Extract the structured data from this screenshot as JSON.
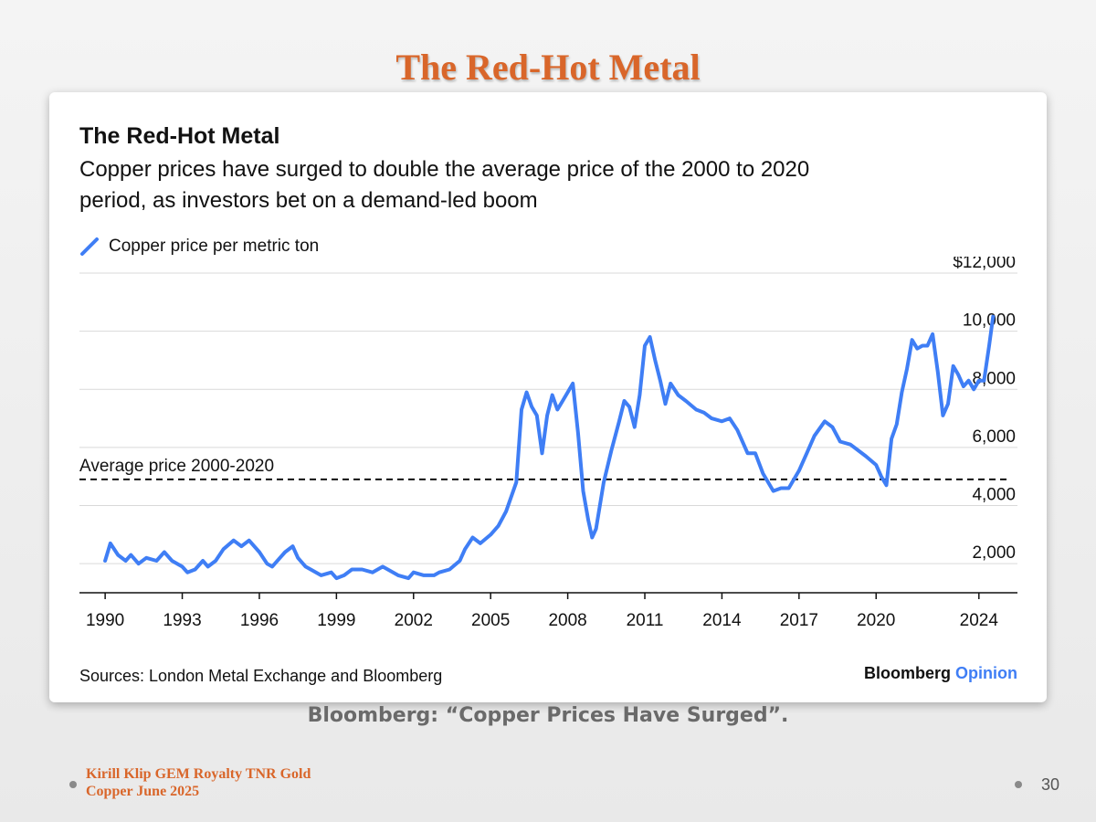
{
  "slide": {
    "title": "The Red-Hot Metal",
    "caption": "Bloomberg: “Copper Prices Have Surged”.",
    "footer_line1": "Kirill Klip GEM Royalty TNR Gold",
    "footer_line2": "Copper June 2025",
    "page_number": "30",
    "accent_color": "#d9662a"
  },
  "chart": {
    "brand_name": "Bloomberg",
    "brand_accent": "Opinion"
  },
  "chart_data": {
    "type": "line",
    "title": "The Red-Hot Metal",
    "subtitle_line1": "Copper prices have surged to double the average price of the 2000 to 2020",
    "subtitle_line2": "period, as investors bet on a demand-led boom",
    "source": "Sources: London Metal Exchange and Bloomberg",
    "xlabel": "",
    "ylabel": "",
    "xlim": [
      1989,
      2025.5
    ],
    "ylim": [
      1000,
      12000
    ],
    "x_ticks": [
      1990,
      1993,
      1996,
      1999,
      2002,
      2005,
      2008,
      2011,
      2014,
      2017,
      2020,
      2024
    ],
    "x_tick_labels": [
      "1990",
      "1993",
      "1996",
      "1999",
      "2002",
      "2005",
      "2008",
      "2011",
      "2014",
      "2017",
      "2020",
      "2024"
    ],
    "y_ticks": [
      2000,
      4000,
      6000,
      8000,
      10000,
      12000
    ],
    "y_tick_labels": [
      "2,000",
      "4,000",
      "6,000",
      "8,000",
      "10,000",
      "$12,000"
    ],
    "grid": true,
    "legend_position": "top-left",
    "reference_line": {
      "value": 4900,
      "label": "Average price 2000-2020"
    },
    "series": [
      {
        "name": "Copper price per metric ton",
        "color": "#3f7ef5",
        "x": [
          1990.0,
          1990.2,
          1990.5,
          1990.8,
          1991.0,
          1991.3,
          1991.6,
          1992.0,
          1992.3,
          1992.6,
          1993.0,
          1993.2,
          1993.5,
          1993.8,
          1994.0,
          1994.3,
          1994.6,
          1995.0,
          1995.3,
          1995.6,
          1996.0,
          1996.3,
          1996.5,
          1996.8,
          1997.0,
          1997.3,
          1997.5,
          1997.8,
          1998.0,
          1998.4,
          1998.8,
          1999.0,
          1999.3,
          1999.6,
          2000.0,
          2000.4,
          2000.8,
          2001.0,
          2001.4,
          2001.8,
          2002.0,
          2002.4,
          2002.8,
          2003.0,
          2003.4,
          2003.8,
          2004.0,
          2004.3,
          2004.6,
          2005.0,
          2005.3,
          2005.6,
          2006.0,
          2006.2,
          2006.4,
          2006.6,
          2006.8,
          2007.0,
          2007.2,
          2007.4,
          2007.6,
          2007.8,
          2008.0,
          2008.2,
          2008.4,
          2008.6,
          2008.8,
          2008.95,
          2009.1,
          2009.4,
          2009.7,
          2010.0,
          2010.2,
          2010.4,
          2010.6,
          2010.8,
          2011.0,
          2011.2,
          2011.4,
          2011.6,
          2011.8,
          2012.0,
          2012.3,
          2012.6,
          2013.0,
          2013.3,
          2013.6,
          2014.0,
          2014.3,
          2014.6,
          2015.0,
          2015.3,
          2015.6,
          2016.0,
          2016.3,
          2016.6,
          2017.0,
          2017.3,
          2017.6,
          2018.0,
          2018.3,
          2018.6,
          2019.0,
          2019.3,
          2019.6,
          2020.0,
          2020.2,
          2020.4,
          2020.6,
          2020.8,
          2021.0,
          2021.2,
          2021.4,
          2021.6,
          2021.8,
          2022.0,
          2022.2,
          2022.4,
          2022.6,
          2022.8,
          2023.0,
          2023.2,
          2023.4,
          2023.6,
          2023.8,
          2024.0,
          2024.2,
          2024.4,
          2024.55
        ],
        "values": [
          2100,
          2700,
          2300,
          2100,
          2300,
          2000,
          2200,
          2100,
          2400,
          2100,
          1900,
          1700,
          1800,
          2100,
          1900,
          2100,
          2500,
          2800,
          2600,
          2800,
          2400,
          2000,
          1900,
          2200,
          2400,
          2600,
          2200,
          1900,
          1800,
          1600,
          1700,
          1500,
          1600,
          1800,
          1800,
          1700,
          1900,
          1800,
          1600,
          1500,
          1700,
          1600,
          1600,
          1700,
          1800,
          2100,
          2500,
          2900,
          2700,
          3000,
          3300,
          3800,
          4800,
          7300,
          7900,
          7400,
          7100,
          5800,
          7100,
          7800,
          7300,
          7600,
          7900,
          8200,
          6500,
          4500,
          3500,
          2900,
          3200,
          4800,
          5900,
          6900,
          7600,
          7400,
          6700,
          7800,
          9500,
          9800,
          9000,
          8300,
          7500,
          8200,
          7800,
          7600,
          7300,
          7200,
          7000,
          6900,
          7000,
          6600,
          5800,
          5800,
          5100,
          4500,
          4600,
          4600,
          5200,
          5800,
          6400,
          6900,
          6700,
          6200,
          6100,
          5900,
          5700,
          5400,
          5000,
          4700,
          6300,
          6800,
          7900,
          8700,
          9700,
          9400,
          9500,
          9500,
          9900,
          8600,
          7100,
          7500,
          8800,
          8500,
          8100,
          8300,
          8000,
          8300,
          8300,
          9500,
          10500
        ]
      }
    ]
  }
}
